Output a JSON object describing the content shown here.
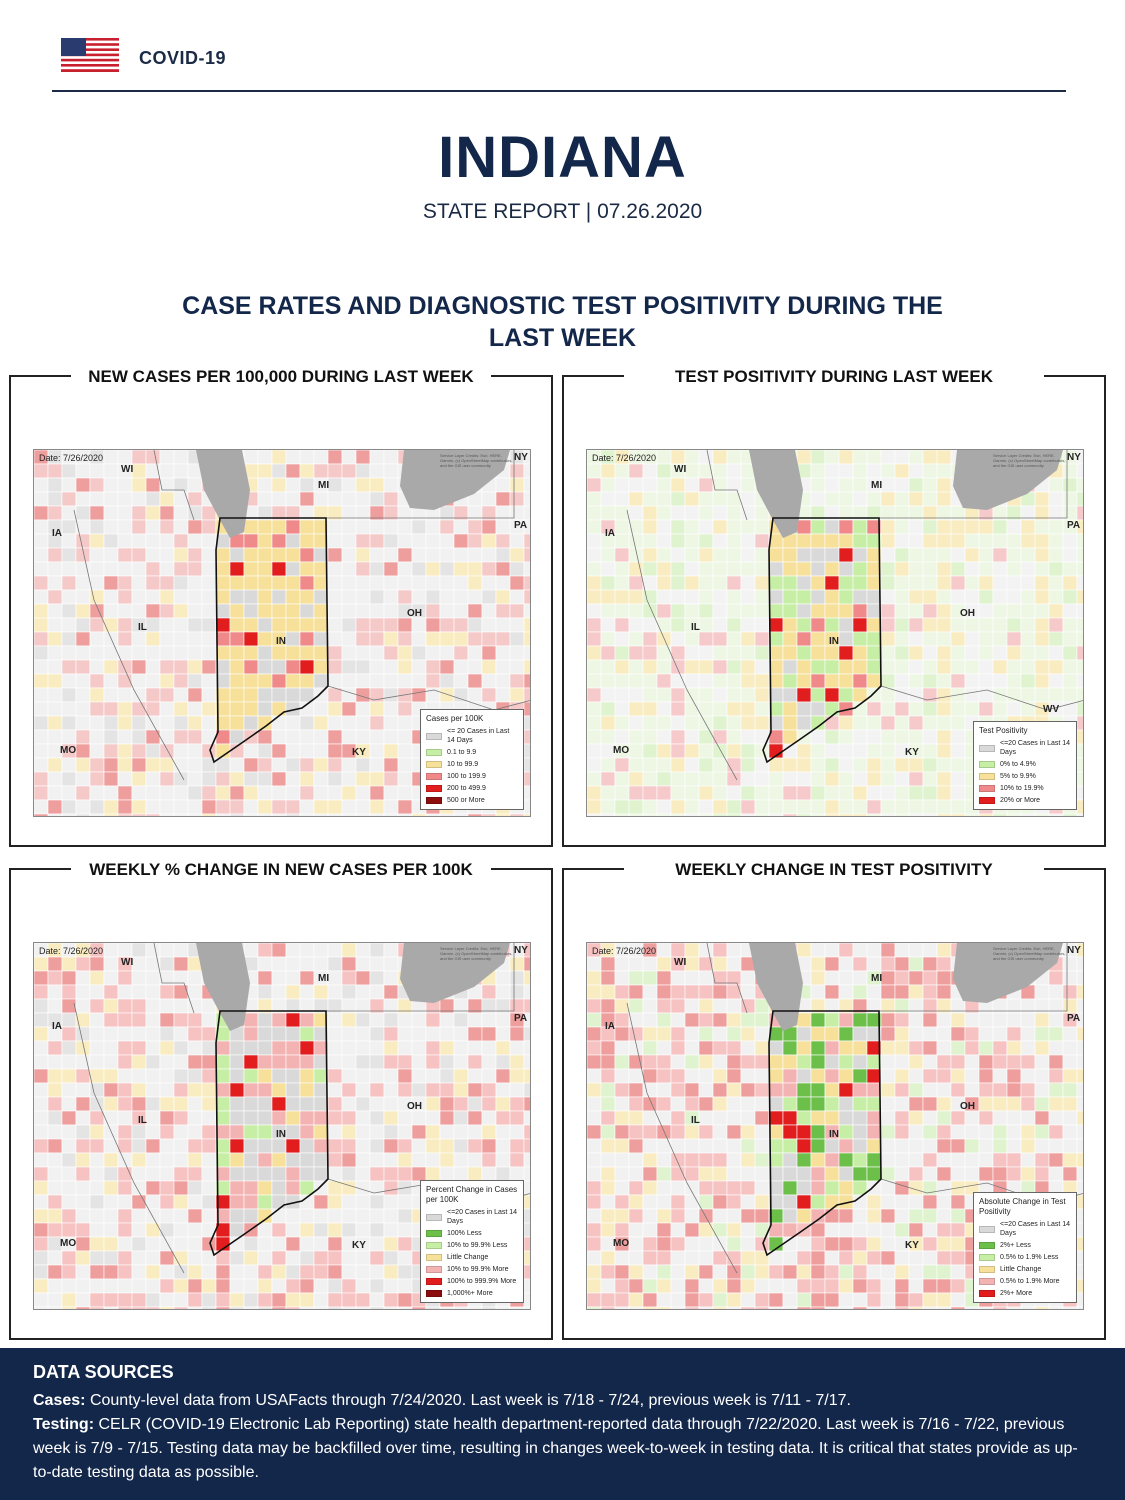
{
  "header": {
    "brand": "COVID-19"
  },
  "title": "INDIANA",
  "subtitle": "STATE REPORT | 07.26.2020",
  "section_title": "CASE RATES AND DIAGNOSTIC TEST POSITIVITY DURING THE LAST WEEK",
  "map_common": {
    "date": "Date: 7/26/2020",
    "credit": "Service Layer Credits: Esri, HERE, Garmin, (c) OpenStreetMap contributors, and the GIS user community",
    "labels": {
      "wi": "WI",
      "mi": "MI",
      "ia": "IA",
      "pa": "PA",
      "ny": "NY",
      "il": "IL",
      "in": "IN",
      "oh": "OH",
      "mo": "MO",
      "ky": "KY",
      "wv": "WV"
    }
  },
  "panels": [
    {
      "title": "NEW CASES PER 100,000 DURING LAST WEEK",
      "legend": {
        "title": "Cases per 100K",
        "items": [
          {
            "label": "<= 20 Cases in Last 14 Days",
            "color": "#d9d9d9"
          },
          {
            "label": "0.1 to 9.9",
            "color": "#c6eea4"
          },
          {
            "label": "10 to 99.9",
            "color": "#f6e09a"
          },
          {
            "label": "100 to 199.9",
            "color": "#f08a8a"
          },
          {
            "label": "200 to 499.9",
            "color": "#e11d1d"
          },
          {
            "label": "500 or More",
            "color": "#8b0d0d"
          }
        ]
      }
    },
    {
      "title": "TEST POSITIVITY DURING LAST WEEK",
      "legend": {
        "title": "Test Positivity",
        "items": [
          {
            "label": "<=20 Cases in Last 14 Days",
            "color": "#d9d9d9"
          },
          {
            "label": "0% to 4.9%",
            "color": "#c6eea4"
          },
          {
            "label": "5% to 9.9%",
            "color": "#f6e09a"
          },
          {
            "label": "10% to 19.9%",
            "color": "#f08a8a"
          },
          {
            "label": "20% or More",
            "color": "#e11d1d"
          }
        ]
      }
    },
    {
      "title": "WEEKLY % CHANGE IN NEW CASES PER 100K",
      "legend": {
        "title": "Percent Change in Cases per 100K",
        "items": [
          {
            "label": "<=20 Cases in Last 14 Days",
            "color": "#d9d9d9"
          },
          {
            "label": "100% Less",
            "color": "#6cc04a"
          },
          {
            "label": "10% to 99.9% Less",
            "color": "#c6eea4"
          },
          {
            "label": "Little Change",
            "color": "#f6e09a"
          },
          {
            "label": "10% to 99.9% More",
            "color": "#f4b3b3"
          },
          {
            "label": "100% to 999.9% More",
            "color": "#e11d1d"
          },
          {
            "label": "1,000%+ More",
            "color": "#8b0d0d"
          }
        ]
      }
    },
    {
      "title": "WEEKLY CHANGE IN TEST POSITIVITY",
      "legend": {
        "title": "Absolute Change in Test Positivity",
        "items": [
          {
            "label": "<=20 Cases in Last 14 Days",
            "color": "#d9d9d9"
          },
          {
            "label": "2%+ Less",
            "color": "#6cc04a"
          },
          {
            "label": "0.5% to 1.9% Less",
            "color": "#c6eea4"
          },
          {
            "label": "Little Change",
            "color": "#f6e09a"
          },
          {
            "label": "0.5% to 1.9% More",
            "color": "#f4b3b3"
          },
          {
            "label": "2%+ More",
            "color": "#e11d1d"
          }
        ]
      }
    }
  ],
  "footer": {
    "title": "DATA SOURCES",
    "cases_label": "Cases:",
    "cases_text": "County-level data from USAFacts through 7/24/2020. Last week is 7/18 - 7/24, previous week is 7/11 - 7/17.",
    "testing_label": "Testing:",
    "testing_text": "CELR (COVID-19 Electronic Lab Reporting) state health department-reported data through 7/22/2020. Last week is 7/16 - 7/22, previous week is 7/9 - 7/15. Testing data may be backfilled over time, resulting in changes week-to-week in testing data. It is critical that states provide as up-to-date testing data as possible."
  }
}
